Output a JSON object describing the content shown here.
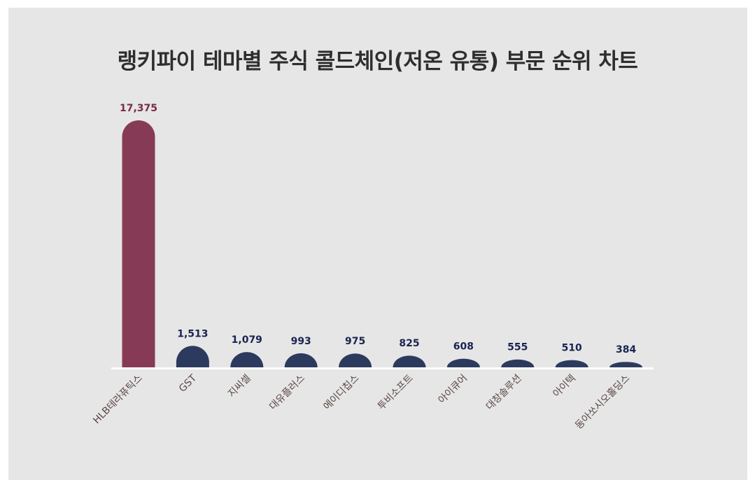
{
  "chart_data": {
    "type": "bar",
    "title": "랭키파이 테마별 주식 콜드체인(저온 유통) 부문 순위 차트",
    "categories": [
      "HLB테라퓨틱스",
      "GST",
      "지씨셀",
      "대유플러스",
      "에이디칩스",
      "투비소프트",
      "아이큐어",
      "대창솔루션",
      "아이텍",
      "동아쏘시오홀딩스"
    ],
    "values": [
      17375,
      1513,
      1079,
      993,
      975,
      825,
      608,
      555,
      510,
      384
    ],
    "value_labels": [
      "17,375",
      "1,513",
      "1,079",
      "993",
      "975",
      "825",
      "608",
      "555",
      "510",
      "384"
    ],
    "xlabel": "",
    "ylabel": "",
    "grid": false,
    "legend": "none",
    "colors": {
      "highlight": "#873a55",
      "bar": "#2c3a5e",
      "highlight_label": "#7a2a46",
      "label": "#1b2450",
      "category": "#5a4844",
      "baseline": "#ffffff",
      "panel": "#e6e6e6"
    }
  }
}
